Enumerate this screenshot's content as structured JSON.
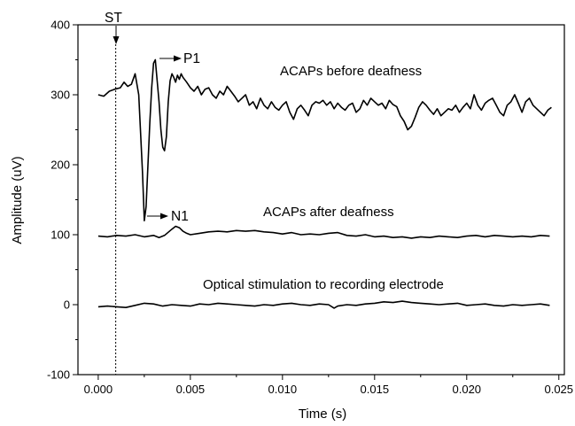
{
  "chart_data": {
    "type": "line",
    "title": "",
    "xlabel": "Time (s)",
    "ylabel": "Amplitude (uV)",
    "xlim": [
      -0.0011,
      0.0253
    ],
    "ylim": [
      -100,
      400
    ],
    "x_ticks": [
      0.0,
      0.005,
      0.01,
      0.015,
      0.02,
      0.025
    ],
    "x_tick_labels": [
      "0.000",
      "0.005",
      "0.010",
      "0.015",
      "0.020",
      "0.025"
    ],
    "y_ticks": [
      -100,
      0,
      100,
      200,
      300,
      400
    ],
    "y_tick_labels": [
      "-100",
      "0",
      "100",
      "200",
      "300",
      "400"
    ],
    "grid": false,
    "legend": "none",
    "colors": {
      "line": "#000000",
      "axis": "#000000"
    },
    "series": [
      {
        "label": "ACAPs before deafness",
        "x": [
          0.0,
          0.0003,
          0.0006,
          0.0009,
          0.0012,
          0.0014,
          0.0016,
          0.0018,
          0.002,
          0.0022,
          0.0024,
          0.0025,
          0.0026,
          0.0027,
          0.0028,
          0.0029,
          0.003,
          0.0031,
          0.0032,
          0.0033,
          0.0034,
          0.0035,
          0.0036,
          0.0037,
          0.0038,
          0.0039,
          0.004,
          0.0041,
          0.0042,
          0.0043,
          0.0044,
          0.0045,
          0.0046,
          0.0048,
          0.005,
          0.0052,
          0.0054,
          0.0056,
          0.0058,
          0.006,
          0.0062,
          0.0064,
          0.0066,
          0.0068,
          0.007,
          0.0072,
          0.0074,
          0.0076,
          0.0078,
          0.008,
          0.0082,
          0.0084,
          0.0086,
          0.0088,
          0.009,
          0.0092,
          0.0094,
          0.0096,
          0.0098,
          0.01,
          0.0102,
          0.0104,
          0.0106,
          0.0108,
          0.011,
          0.0112,
          0.0114,
          0.0116,
          0.0118,
          0.012,
          0.0122,
          0.0124,
          0.0126,
          0.0128,
          0.013,
          0.0132,
          0.0134,
          0.0136,
          0.0138,
          0.014,
          0.0142,
          0.0144,
          0.0146,
          0.0148,
          0.015,
          0.0152,
          0.0154,
          0.0156,
          0.0158,
          0.016,
          0.0162,
          0.0164,
          0.0166,
          0.0168,
          0.017,
          0.0172,
          0.0174,
          0.0176,
          0.0178,
          0.018,
          0.0182,
          0.0184,
          0.0186,
          0.0188,
          0.019,
          0.0192,
          0.0194,
          0.0196,
          0.0198,
          0.02,
          0.0202,
          0.0204,
          0.0206,
          0.0208,
          0.021,
          0.0212,
          0.0214,
          0.0216,
          0.0218,
          0.022,
          0.0222,
          0.0224,
          0.0226,
          0.0228,
          0.023,
          0.0232,
          0.0234,
          0.0236,
          0.0238,
          0.024,
          0.0242,
          0.0244,
          0.0246
        ],
        "y": [
          300,
          298,
          305,
          308,
          310,
          318,
          312,
          315,
          330,
          300,
          190,
          120,
          140,
          200,
          260,
          310,
          345,
          350,
          320,
          290,
          250,
          225,
          220,
          240,
          290,
          320,
          330,
          325,
          318,
          328,
          322,
          330,
          325,
          318,
          310,
          305,
          312,
          300,
          308,
          310,
          300,
          295,
          305,
          300,
          312,
          305,
          298,
          290,
          295,
          300,
          285,
          290,
          280,
          295,
          285,
          280,
          290,
          282,
          278,
          285,
          290,
          275,
          265,
          280,
          285,
          278,
          270,
          285,
          290,
          288,
          292,
          285,
          290,
          280,
          288,
          282,
          278,
          285,
          288,
          275,
          280,
          292,
          285,
          295,
          290,
          285,
          288,
          280,
          292,
          286,
          283,
          270,
          262,
          250,
          255,
          268,
          282,
          290,
          285,
          278,
          272,
          280,
          270,
          275,
          280,
          278,
          285,
          275,
          282,
          288,
          280,
          300,
          285,
          278,
          288,
          292,
          295,
          285,
          275,
          270,
          285,
          290,
          300,
          288,
          275,
          290,
          295,
          285,
          280,
          275,
          270,
          278,
          282
        ],
        "color": "#000000"
      },
      {
        "label": "ACAPs after deafness",
        "x": [
          0.0,
          0.0005,
          0.001,
          0.0015,
          0.002,
          0.0025,
          0.003,
          0.0033,
          0.0036,
          0.004,
          0.0042,
          0.0044,
          0.0046,
          0.0048,
          0.005,
          0.0055,
          0.006,
          0.0065,
          0.007,
          0.0075,
          0.008,
          0.0085,
          0.009,
          0.0095,
          0.01,
          0.0105,
          0.011,
          0.0115,
          0.012,
          0.0125,
          0.013,
          0.0135,
          0.014,
          0.0145,
          0.015,
          0.0155,
          0.016,
          0.0165,
          0.017,
          0.0175,
          0.018,
          0.0185,
          0.019,
          0.0195,
          0.02,
          0.0205,
          0.021,
          0.0215,
          0.022,
          0.0225,
          0.023,
          0.0235,
          0.024,
          0.0245
        ],
        "y": [
          98,
          97,
          99,
          98,
          100,
          97,
          99,
          96,
          99,
          108,
          112,
          110,
          105,
          102,
          100,
          102,
          104,
          105,
          104,
          106,
          105,
          106,
          104,
          103,
          101,
          103,
          100,
          101,
          100,
          102,
          103,
          99,
          98,
          100,
          97,
          98,
          96,
          97,
          95,
          97,
          96,
          98,
          97,
          96,
          98,
          99,
          97,
          99,
          98,
          97,
          98,
          97,
          99,
          98
        ],
        "color": "#000000"
      },
      {
        "label": "Optical stimulation to recording electrode",
        "x": [
          0.0,
          0.0005,
          0.001,
          0.0015,
          0.002,
          0.0025,
          0.003,
          0.0035,
          0.004,
          0.0045,
          0.005,
          0.0055,
          0.006,
          0.0065,
          0.007,
          0.0075,
          0.008,
          0.0085,
          0.009,
          0.0095,
          0.01,
          0.0105,
          0.011,
          0.0115,
          0.012,
          0.0125,
          0.0128,
          0.013,
          0.0135,
          0.014,
          0.0145,
          0.015,
          0.0155,
          0.016,
          0.0165,
          0.017,
          0.0175,
          0.018,
          0.0185,
          0.019,
          0.0195,
          0.02,
          0.0205,
          0.021,
          0.0215,
          0.022,
          0.0225,
          0.023,
          0.0235,
          0.024,
          0.0245
        ],
        "y": [
          -3,
          -2,
          -3,
          -4,
          -1,
          2,
          1,
          -2,
          0,
          -1,
          -2,
          1,
          0,
          2,
          1,
          0,
          -1,
          -2,
          0,
          -1,
          1,
          2,
          0,
          -1,
          1,
          0,
          -5,
          -2,
          0,
          -1,
          1,
          2,
          4,
          3,
          5,
          3,
          2,
          1,
          0,
          1,
          2,
          -1,
          0,
          1,
          -1,
          -2,
          0,
          -1,
          0,
          1,
          -1
        ],
        "color": "#000000"
      }
    ],
    "annotations": {
      "st_label": "ST",
      "st_x": 0.00095,
      "p1_label": "P1",
      "n1_label": "N1",
      "label_before": "ACAPs before deafness",
      "label_after": "ACAPs after deafness",
      "label_optical": "Optical stimulation to recording electrode"
    }
  }
}
